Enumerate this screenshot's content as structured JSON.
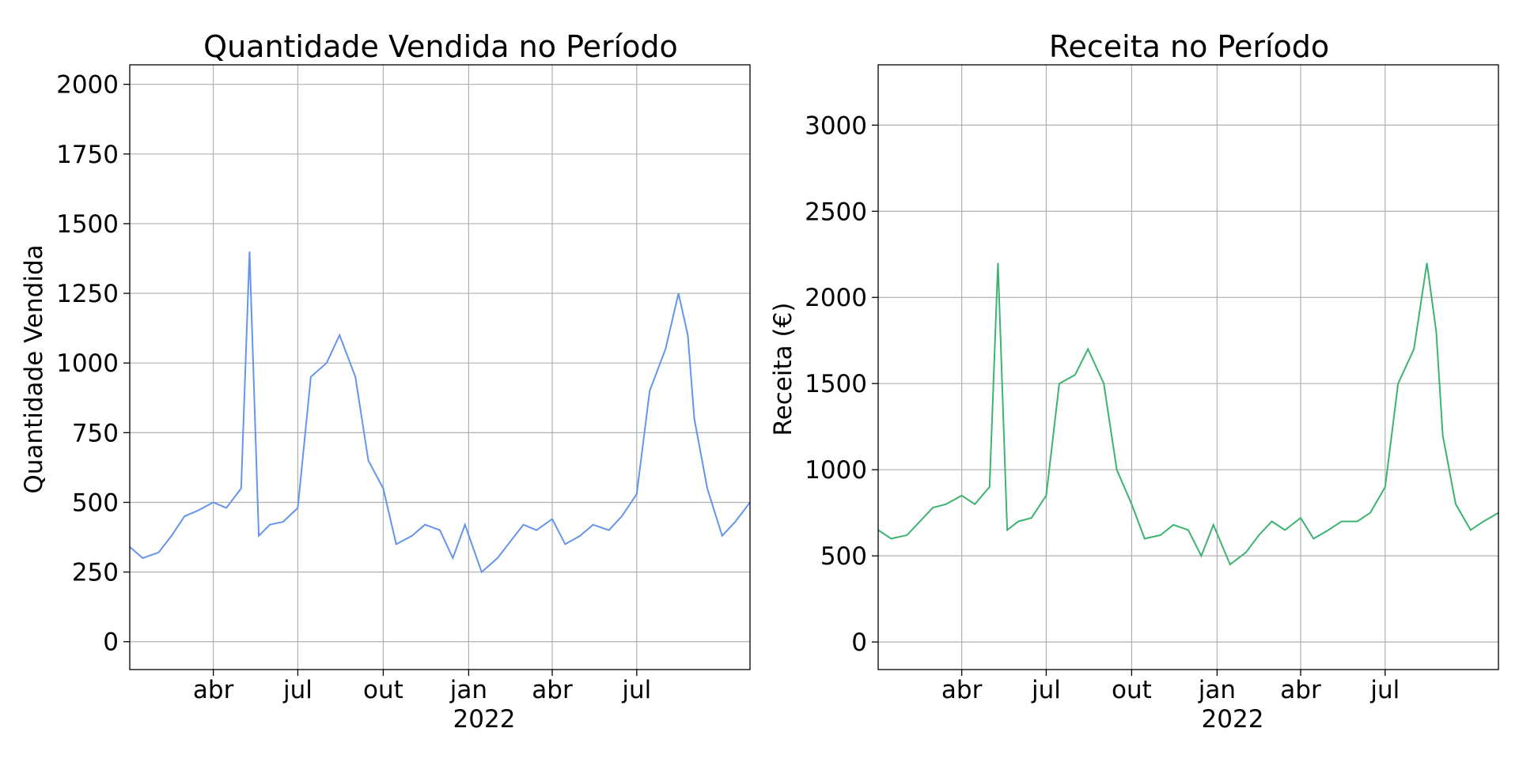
{
  "chart_data": [
    {
      "type": "line",
      "title": "Quantidade Vendida no Período",
      "xlabel": "",
      "ylabel": "Quantidade Vendida",
      "year_label": "2022",
      "color": "#6495ED",
      "x_tick_labels": [
        "abr",
        "jul",
        "out",
        "jan",
        "abr",
        "jul"
      ],
      "x_ticks": [
        "2021-04-01",
        "2021-07-01",
        "2021-10-01",
        "2022-01-01",
        "2022-04-01",
        "2022-07-01"
      ],
      "xlim": [
        "2021-01-01",
        "2022-10-31"
      ],
      "y_ticks": [
        0,
        250,
        500,
        750,
        1000,
        1250,
        1500,
        1750,
        2000
      ],
      "y_tick_labels": [
        "0",
        "250",
        "500",
        "750",
        "1000",
        "1250",
        "1500",
        "1750",
        "2000"
      ],
      "ylim": [
        -100,
        2070
      ],
      "grid": true,
      "series": [
        {
          "x": [
            "2021-01-01",
            "2021-01-15",
            "2021-02-01",
            "2021-02-15",
            "2021-03-01",
            "2021-03-15",
            "2021-04-01",
            "2021-04-15",
            "2021-05-01",
            "2021-05-10",
            "2021-05-20",
            "2021-06-01",
            "2021-06-15",
            "2021-07-01",
            "2021-07-15",
            "2021-08-01",
            "2021-08-15",
            "2021-09-01",
            "2021-09-15",
            "2021-10-01",
            "2021-10-15",
            "2021-11-01",
            "2021-11-15",
            "2021-12-01",
            "2021-12-15",
            "2021-12-28",
            "2022-01-15",
            "2022-02-01",
            "2022-02-15",
            "2022-03-01",
            "2022-03-15",
            "2022-04-01",
            "2022-04-15",
            "2022-05-01",
            "2022-05-15",
            "2022-06-01",
            "2022-06-15",
            "2022-07-01",
            "2022-07-15",
            "2022-08-01",
            "2022-08-15",
            "2022-08-25",
            "2022-09-01",
            "2022-09-15",
            "2022-10-01",
            "2022-10-15",
            "2022-10-31"
          ],
          "y": [
            340,
            300,
            320,
            380,
            450,
            470,
            500,
            480,
            550,
            1400,
            380,
            420,
            430,
            480,
            950,
            1000,
            1100,
            950,
            650,
            550,
            350,
            380,
            420,
            400,
            300,
            420,
            250,
            300,
            360,
            420,
            400,
            440,
            350,
            380,
            420,
            400,
            450,
            530,
            900,
            1050,
            1250,
            1100,
            800,
            550,
            380,
            430,
            500
          ]
        }
      ]
    },
    {
      "type": "line",
      "title": "Receita no Período",
      "xlabel": "",
      "ylabel": "Receita (€)",
      "year_label": "2022",
      "color": "#3CB371",
      "x_tick_labels": [
        "abr",
        "jul",
        "out",
        "jan",
        "abr",
        "jul"
      ],
      "x_ticks": [
        "2021-04-01",
        "2021-07-01",
        "2021-10-01",
        "2022-01-01",
        "2022-04-01",
        "2022-07-01"
      ],
      "xlim": [
        "2021-01-01",
        "2022-10-31"
      ],
      "y_ticks": [
        0,
        500,
        1000,
        1500,
        2000,
        2500,
        3000
      ],
      "y_tick_labels": [
        "0",
        "500",
        "1000",
        "1500",
        "2000",
        "2500",
        "3000"
      ],
      "ylim": [
        -160,
        3350
      ],
      "grid": true,
      "series": [
        {
          "x": [
            "2021-01-01",
            "2021-01-15",
            "2021-02-01",
            "2021-02-15",
            "2021-03-01",
            "2021-03-15",
            "2021-04-01",
            "2021-04-15",
            "2021-05-01",
            "2021-05-10",
            "2021-05-20",
            "2021-06-01",
            "2021-06-15",
            "2021-07-01",
            "2021-07-15",
            "2021-08-01",
            "2021-08-15",
            "2021-09-01",
            "2021-09-15",
            "2021-10-01",
            "2021-10-15",
            "2021-11-01",
            "2021-11-15",
            "2021-12-01",
            "2021-12-15",
            "2021-12-28",
            "2022-01-15",
            "2022-02-01",
            "2022-02-15",
            "2022-03-01",
            "2022-03-15",
            "2022-04-01",
            "2022-04-15",
            "2022-05-01",
            "2022-05-15",
            "2022-06-01",
            "2022-06-15",
            "2022-07-01",
            "2022-07-15",
            "2022-08-01",
            "2022-08-15",
            "2022-08-25",
            "2022-09-01",
            "2022-09-15",
            "2022-10-01",
            "2022-10-15",
            "2022-10-31"
          ],
          "y": [
            650,
            600,
            620,
            700,
            780,
            800,
            850,
            800,
            900,
            2200,
            650,
            700,
            720,
            850,
            1500,
            1550,
            1700,
            1500,
            1000,
            800,
            600,
            620,
            680,
            650,
            500,
            680,
            450,
            520,
            620,
            700,
            650,
            720,
            600,
            650,
            700,
            700,
            750,
            900,
            1500,
            1700,
            2200,
            1800,
            1200,
            800,
            650,
            700,
            750
          ]
        }
      ]
    }
  ]
}
